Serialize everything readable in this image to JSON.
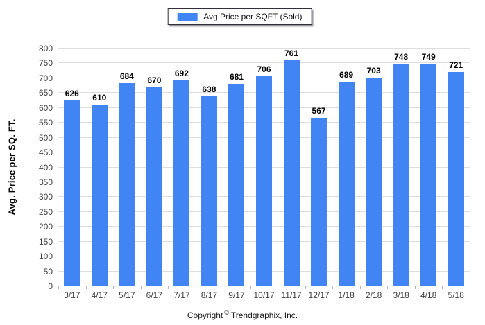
{
  "chart_data": {
    "type": "bar",
    "legend": "Avg Price per SQFT (Sold)",
    "legend_position": "top-center",
    "categories": [
      "3/17",
      "4/17",
      "5/17",
      "6/17",
      "7/17",
      "8/17",
      "9/17",
      "10/17",
      "11/17",
      "12/17",
      "1/18",
      "2/18",
      "3/18",
      "4/18",
      "5/18"
    ],
    "values": [
      626,
      610,
      684,
      670,
      692,
      638,
      681,
      706,
      761,
      567,
      689,
      703,
      748,
      749,
      721
    ],
    "xlabel": "",
    "ylabel": "Avg. Price per SQ. FT.",
    "ylim": [
      0,
      800
    ],
    "ytick_step": 50,
    "grid": "horizontal"
  },
  "footer": {
    "prefix": "Copyright",
    "symbol": "©",
    "suffix": "Trendgraphix, Inc."
  },
  "colors": {
    "bar": "#4184f4",
    "grid": "#dedede",
    "axis": "#b4b4b4",
    "tick_text": "#3f3f3f",
    "value_text": "#000000",
    "legend_border": "#30303c"
  }
}
